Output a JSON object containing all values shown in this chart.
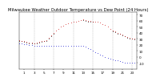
{
  "title": "Milwaukee Weather Outdoor Temperature vs Dew Point (24 Hours)",
  "xlim": [
    0,
    24
  ],
  "ylim": [
    -20,
    75
  ],
  "yticks": [
    -10,
    0,
    10,
    20,
    30,
    40,
    50,
    60,
    70
  ],
  "ytick_labels": [
    "-10",
    "0",
    "10",
    "20",
    "30",
    "40",
    "50",
    "60",
    "70"
  ],
  "xticks": [
    1,
    3,
    5,
    7,
    9,
    11,
    13,
    15,
    17,
    19,
    21,
    23
  ],
  "xtick_labels": [
    "1",
    "3",
    "5",
    "7",
    "9",
    "11",
    "13",
    "15",
    "17",
    "19",
    "21",
    "23"
  ],
  "grid_x": [
    3,
    7,
    11,
    15,
    19,
    23
  ],
  "temp_x": [
    0,
    0.5,
    1,
    1.5,
    2,
    2.5,
    3,
    3.5,
    4,
    4.5,
    5,
    5.5,
    6,
    6.5,
    7,
    7.5,
    8,
    8.5,
    9,
    9.5,
    10,
    10.5,
    11,
    11.5,
    12,
    12.5,
    13,
    13.5,
    14,
    14.5,
    15,
    15.5,
    16,
    16.5,
    17,
    17.5,
    18,
    18.5,
    19,
    19.5,
    20,
    20.5,
    21,
    21.5,
    22,
    22.5,
    23,
    23.5
  ],
  "temp_y": [
    28,
    27,
    26,
    25,
    24,
    24,
    23,
    24,
    25,
    26,
    27,
    28,
    32,
    36,
    40,
    44,
    47,
    50,
    52,
    54,
    56,
    57,
    58,
    59,
    60,
    61,
    62,
    61,
    60,
    60,
    59,
    58,
    58,
    57,
    55,
    53,
    50,
    47,
    44,
    42,
    40,
    39,
    37,
    35,
    33,
    32,
    31,
    30
  ],
  "dew_x": [
    0,
    0.5,
    1,
    1.5,
    2,
    2.5,
    3,
    3.5,
    4,
    4.5,
    5,
    5.5,
    6,
    6.5,
    7,
    7.5,
    8,
    8.5,
    9,
    9.5,
    10,
    10.5,
    11,
    11.5,
    12,
    12.5,
    13,
    13.5,
    14,
    14.5,
    15,
    15.5,
    16,
    16.5,
    17,
    17.5,
    18,
    18.5,
    19,
    19.5,
    20,
    20.5,
    21,
    21.5,
    22,
    22.5,
    23,
    23.5
  ],
  "dew_y": [
    22,
    22,
    21,
    21,
    20,
    20,
    19,
    19,
    19,
    19,
    19,
    19,
    19,
    19,
    19,
    19,
    19,
    19,
    19,
    19,
    19,
    19,
    19,
    19,
    19,
    18,
    18,
    17,
    15,
    13,
    10,
    8,
    6,
    4,
    2,
    0,
    -2,
    -3,
    -4,
    -5,
    -6,
    -7,
    -8,
    -9,
    -10,
    -10,
    -10,
    -10
  ],
  "black_x": [
    0,
    0.5,
    1,
    1.5,
    2,
    2.5,
    3,
    3.5,
    4,
    4.5,
    5,
    5.5,
    6,
    6.5,
    7,
    13,
    13.5,
    14,
    14.5,
    15,
    19,
    19.5,
    20,
    20.5,
    21,
    21.5,
    22,
    22.5,
    23,
    23.5
  ],
  "black_y": [
    27,
    26,
    25,
    24,
    23,
    23,
    22,
    23,
    24,
    25,
    26,
    27,
    31,
    35,
    39,
    61,
    60,
    59,
    59,
    58,
    43,
    41,
    39,
    38,
    36,
    34,
    32,
    31,
    30,
    29
  ],
  "temp_color": "#cc0000",
  "dew_color": "#0000cc",
  "black_color": "#000000",
  "background_color": "#ffffff",
  "title_fontsize": 3.8,
  "tick_fontsize": 3.0,
  "marker_size": 1.0
}
